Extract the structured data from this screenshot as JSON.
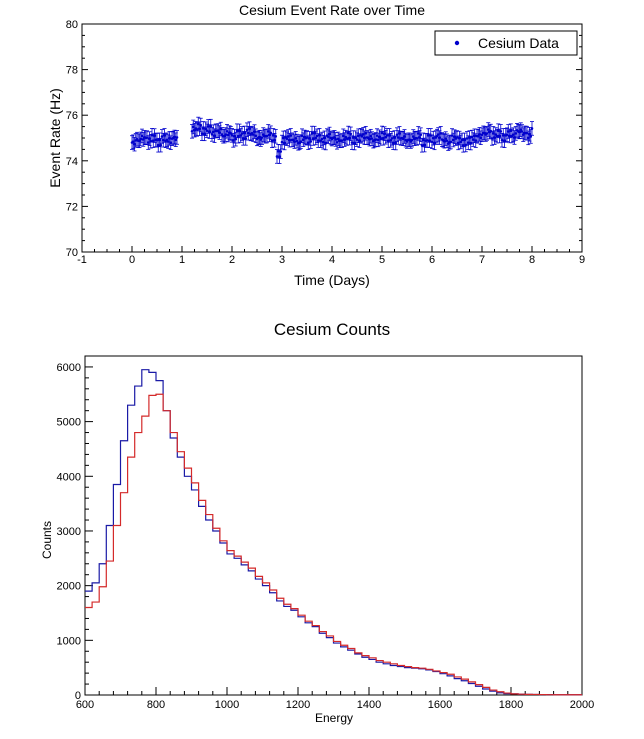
{
  "chart_data": [
    {
      "type": "scatter",
      "title": "Cesium Event Rate over Time",
      "xlabel": "Time (Days)",
      "ylabel": "Event Rate (Hz)",
      "xlim": [
        -1,
        9
      ],
      "ylim": [
        70,
        80
      ],
      "xticks": [
        "-1",
        "0",
        "1",
        "2",
        "3",
        "4",
        "5",
        "6",
        "7",
        "8",
        "9"
      ],
      "yticks": [
        "70",
        "72",
        "74",
        "76",
        "78",
        "80"
      ],
      "legend_position": "top-right",
      "grid": false,
      "error_bars": true,
      "series": [
        {
          "name": "Cesium Data",
          "color": "#0000cc",
          "marker": "dot",
          "yerr": 0.3,
          "x": [
            0.0,
            0.1,
            0.2,
            0.3,
            0.4,
            0.5,
            0.6,
            0.7,
            0.8,
            0.9,
            1.2,
            1.3,
            1.4,
            1.5,
            1.6,
            1.7,
            1.8,
            1.9,
            2.0,
            2.1,
            2.2,
            2.3,
            2.4,
            2.5,
            2.6,
            2.7,
            2.8,
            2.9,
            3.0,
            3.1,
            3.2,
            3.3,
            3.4,
            3.5,
            3.6,
            3.7,
            3.8,
            3.9,
            4.0,
            4.1,
            4.2,
            4.3,
            4.4,
            4.5,
            4.6,
            4.7,
            4.8,
            4.9,
            5.0,
            5.1,
            5.2,
            5.3,
            5.4,
            5.5,
            5.6,
            5.7,
            5.8,
            5.9,
            6.0,
            6.1,
            6.2,
            6.3,
            6.4,
            6.5,
            6.6,
            6.7,
            6.8,
            6.9,
            7.0,
            7.1,
            7.2,
            7.3,
            7.4,
            7.5,
            7.6,
            7.7,
            7.8,
            7.9,
            8.0
          ],
          "y": [
            74.8,
            74.9,
            75.0,
            74.9,
            75.0,
            74.8,
            75.0,
            74.9,
            75.0,
            75.1,
            75.4,
            75.5,
            75.3,
            75.4,
            75.2,
            75.3,
            75.1,
            75.2,
            75.0,
            75.2,
            75.1,
            75.3,
            75.2,
            75.0,
            75.1,
            75.2,
            75.0,
            74.3,
            74.9,
            75.0,
            74.9,
            74.8,
            75.0,
            74.9,
            75.1,
            75.0,
            74.9,
            75.1,
            75.0,
            74.9,
            75.0,
            75.1,
            74.9,
            75.0,
            75.1,
            75.0,
            74.9,
            75.0,
            75.1,
            75.0,
            74.9,
            75.1,
            75.0,
            74.9,
            75.0,
            75.1,
            74.8,
            75.0,
            74.9,
            75.1,
            74.9,
            74.8,
            75.0,
            74.9,
            74.8,
            74.9,
            75.0,
            75.1,
            75.2,
            75.3,
            75.1,
            75.2,
            75.0,
            75.2,
            75.1,
            75.3,
            75.2,
            75.1,
            75.3
          ]
        }
      ]
    },
    {
      "type": "line",
      "style": "step",
      "title": "Cesium Counts",
      "xlabel": "Energy",
      "ylabel": "Counts",
      "xlim": [
        600,
        2000
      ],
      "ylim": [
        0,
        6200
      ],
      "xticks": [
        "600",
        "800",
        "1000",
        "1200",
        "1400",
        "1600",
        "1800",
        "2000"
      ],
      "yticks": [
        "0",
        "1000",
        "2000",
        "3000",
        "4000",
        "5000",
        "6000"
      ],
      "grid": false,
      "x": [
        600,
        620,
        640,
        660,
        680,
        700,
        720,
        740,
        760,
        780,
        800,
        820,
        840,
        860,
        880,
        900,
        920,
        940,
        960,
        980,
        1000,
        1020,
        1040,
        1060,
        1080,
        1100,
        1120,
        1140,
        1160,
        1180,
        1200,
        1220,
        1240,
        1260,
        1280,
        1300,
        1320,
        1340,
        1360,
        1380,
        1400,
        1420,
        1440,
        1460,
        1480,
        1500,
        1520,
        1540,
        1560,
        1580,
        1600,
        1620,
        1640,
        1660,
        1680,
        1700,
        1720,
        1740,
        1760,
        1780,
        1800,
        1820,
        1840,
        1860,
        1880,
        1900,
        1920,
        1940,
        1960,
        1980
      ],
      "series": [
        {
          "color": "#1a1aa6",
          "values": [
            1900,
            2050,
            2400,
            3100,
            3850,
            4650,
            5300,
            5650,
            5950,
            5900,
            5750,
            5200,
            4700,
            4350,
            4000,
            3750,
            3450,
            3200,
            3000,
            2780,
            2580,
            2500,
            2380,
            2270,
            2120,
            2000,
            1870,
            1720,
            1620,
            1550,
            1430,
            1320,
            1250,
            1130,
            1050,
            950,
            880,
            820,
            750,
            690,
            650,
            600,
            570,
            540,
            520,
            500,
            490,
            480,
            460,
            430,
            390,
            350,
            300,
            260,
            210,
            160,
            110,
            70,
            40,
            25,
            20,
            15,
            12,
            10,
            8,
            8,
            6,
            5,
            5,
            5
          ]
        },
        {
          "color": "#d42a2a",
          "values": [
            1600,
            1700,
            1980,
            2450,
            3100,
            3700,
            4350,
            4800,
            5100,
            5480,
            5500,
            5200,
            4800,
            4450,
            4150,
            3880,
            3560,
            3300,
            3050,
            2820,
            2640,
            2540,
            2430,
            2320,
            2170,
            2050,
            1920,
            1770,
            1660,
            1580,
            1460,
            1350,
            1270,
            1160,
            1080,
            980,
            910,
            850,
            770,
            720,
            680,
            630,
            600,
            570,
            540,
            520,
            500,
            490,
            470,
            440,
            410,
            380,
            330,
            290,
            240,
            190,
            140,
            90,
            60,
            35,
            20,
            15,
            12,
            10,
            8,
            6,
            5,
            5,
            5,
            5
          ]
        }
      ]
    }
  ]
}
